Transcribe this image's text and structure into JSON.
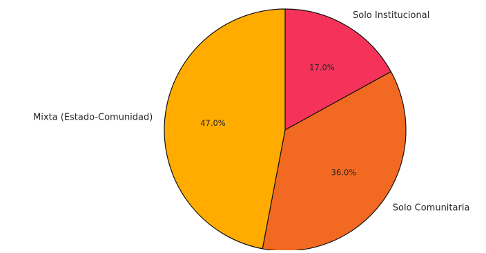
{
  "chart_data": {
    "type": "pie",
    "title": "",
    "categories": [
      "Solo Institucional",
      "Solo Comunitaria",
      "Mixta (Estado-Comunidad)"
    ],
    "values": [
      17.0,
      36.0,
      47.0
    ],
    "percent_labels": [
      "17.0%",
      "36.0%",
      "47.0%"
    ],
    "colors": [
      "#f5335a",
      "#f26a22",
      "#ffab00"
    ],
    "edge_color": "#111111",
    "start_angle_deg": 90,
    "direction": "clockwise",
    "legend": "none"
  }
}
